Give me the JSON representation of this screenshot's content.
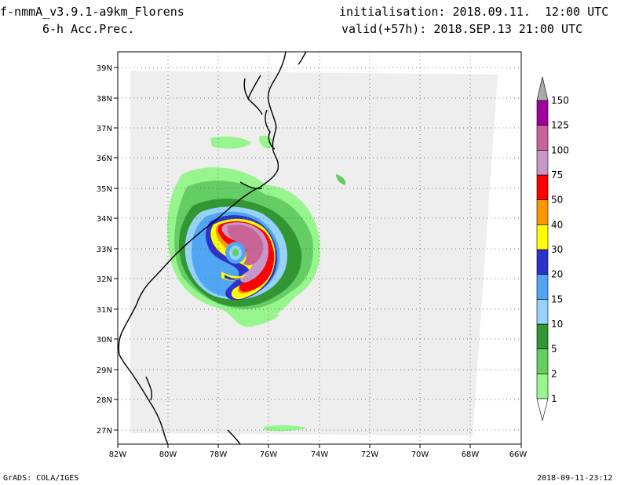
{
  "header": {
    "model_title": "f-nmmA_v3.9.1-a9km_Florens",
    "field_title": "6-h Acc.Prec.",
    "init_line": "initialisation: 2018.09.11.  12:00 UTC",
    "valid_line": "valid(+57h): 2018.SEP.13 21:00 UTC"
  },
  "footer": {
    "left": "GrADS: COLA/IGES",
    "right": "2018-09-11-23:12"
  },
  "map": {
    "lat_labels": [
      "39N",
      "38N",
      "37N",
      "36N",
      "35N",
      "34N",
      "33N",
      "32N",
      "31N",
      "30N",
      "29N",
      "28N",
      "27N"
    ],
    "lon_labels": [
      "82W",
      "80W",
      "78W",
      "76W",
      "74W",
      "72W",
      "70W",
      "68W",
      "66W"
    ],
    "grid": true,
    "storm_center": {
      "lon": -77.2,
      "lat": 32.9
    }
  },
  "colorbar": {
    "levels": [
      "1",
      "2",
      "5",
      "10",
      "15",
      "20",
      "30",
      "40",
      "50",
      "75",
      "100",
      "125",
      "150"
    ],
    "colors": [
      "#ffffff",
      "#96f58c",
      "#64cd64",
      "#329632",
      "#96d2fa",
      "#50a5f5",
      "#2d32c8",
      "#ffff00",
      "#ff9600",
      "#ff0000",
      "#c896c8",
      "#c86496",
      "#a000a0",
      "#aaaaaa"
    ]
  }
}
